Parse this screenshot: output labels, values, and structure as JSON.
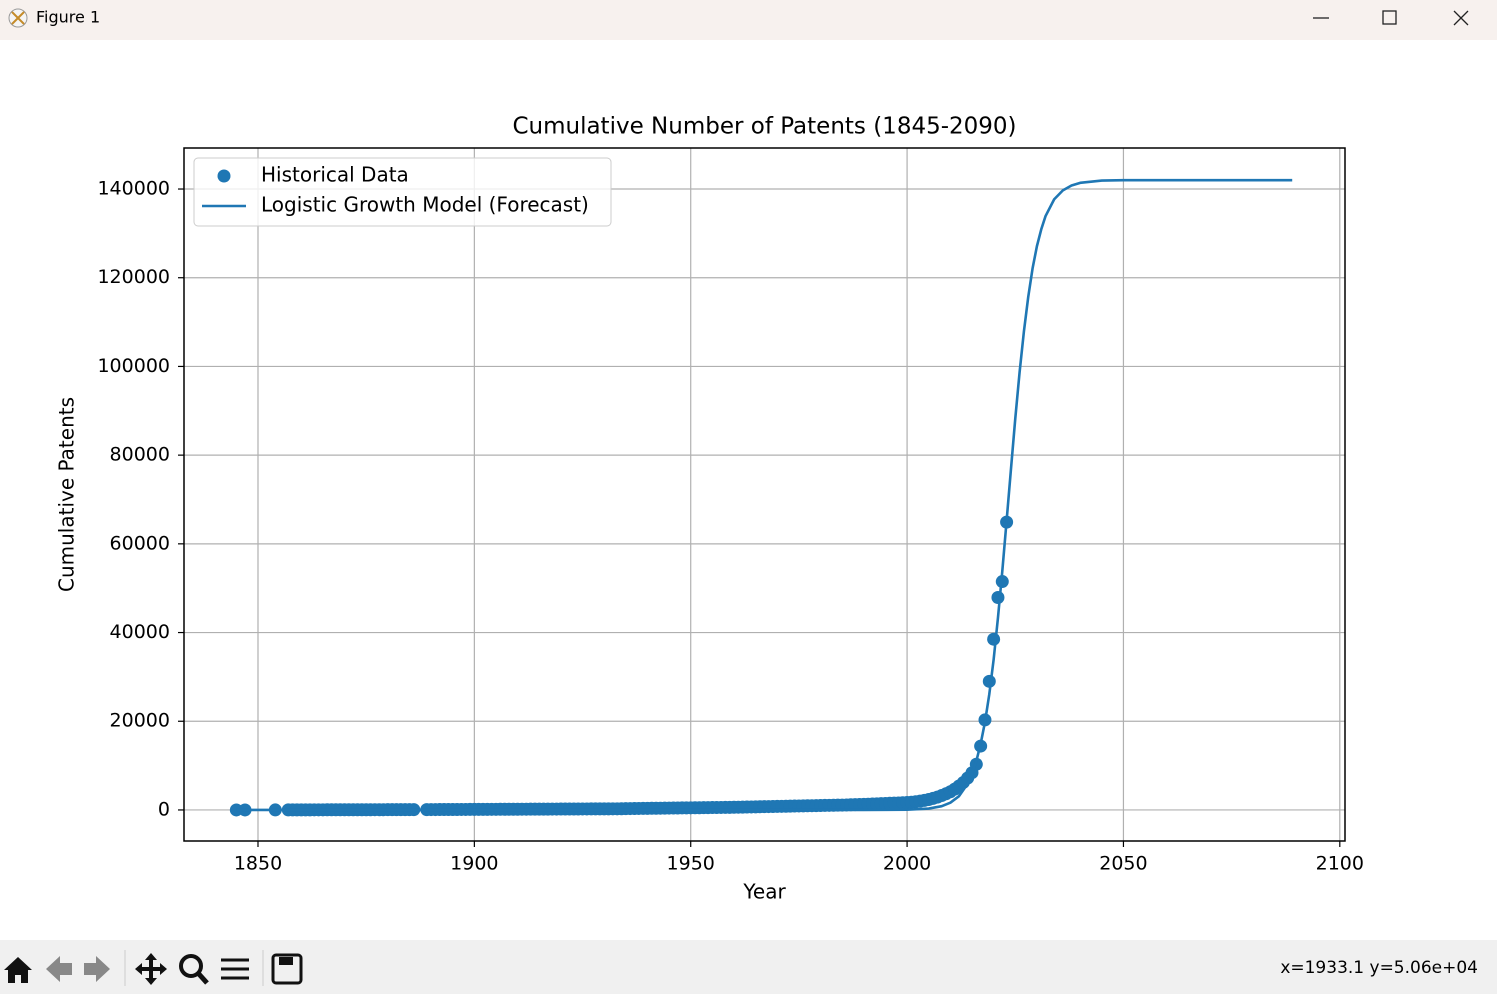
{
  "window": {
    "title": "Figure 1",
    "status": "x=1933.1 y=5.06e+04"
  },
  "chart_data": {
    "type": "line",
    "title": "Cumulative Number of Patents (1845-2090)",
    "x_label": "Year",
    "y_label": "Cumulative Patents",
    "xlim": [
      1832.9,
      2101.2
    ],
    "ylim": [
      -7000,
      149250
    ],
    "xticks": [
      1850,
      1900,
      1950,
      2000,
      2050,
      2100
    ],
    "yticks": [
      0,
      20000,
      40000,
      60000,
      80000,
      100000,
      120000,
      140000
    ],
    "grid": true,
    "legend": "upper left",
    "series": [
      {
        "name": "Historical Data",
        "type": "scatter",
        "color": "#1f77b4",
        "x": [
          1845,
          1847,
          1854,
          1857,
          1858,
          1859,
          1860,
          1861,
          1862,
          1863,
          1864,
          1865,
          1866,
          1867,
          1868,
          1869,
          1870,
          1871,
          1872,
          1873,
          1874,
          1875,
          1876,
          1877,
          1878,
          1879,
          1880,
          1881,
          1882,
          1883,
          1884,
          1885,
          1886,
          1889,
          1890,
          1891,
          1892,
          1893,
          1894,
          1895,
          1896,
          1897,
          1898,
          1899,
          1900,
          1901,
          1902,
          1903,
          1904,
          1905,
          1906,
          1907,
          1908,
          1909,
          1910,
          1911,
          1912,
          1913,
          1914,
          1915,
          1916,
          1917,
          1918,
          1919,
          1920,
          1921,
          1922,
          1923,
          1924,
          1925,
          1926,
          1927,
          1928,
          1929,
          1930,
          1931,
          1932,
          1933,
          1934,
          1935,
          1936,
          1937,
          1938,
          1939,
          1940,
          1941,
          1942,
          1943,
          1944,
          1945,
          1946,
          1947,
          1948,
          1949,
          1950,
          1951,
          1952,
          1953,
          1954,
          1955,
          1956,
          1957,
          1958,
          1959,
          1960,
          1961,
          1962,
          1963,
          1964,
          1965,
          1966,
          1967,
          1968,
          1969,
          1970,
          1971,
          1972,
          1973,
          1974,
          1975,
          1976,
          1977,
          1978,
          1979,
          1980,
          1981,
          1982,
          1983,
          1984,
          1985,
          1986,
          1987,
          1988,
          1989,
          1990,
          1991,
          1992,
          1993,
          1994,
          1995,
          1996,
          1997,
          1998,
          1999,
          2000,
          2001,
          2002,
          2003,
          2004,
          2005,
          2006,
          2007,
          2008,
          2009,
          2010,
          2011,
          2012,
          2013,
          2014,
          2015,
          2016,
          2017,
          2018,
          2019,
          2020,
          2021,
          2022,
          2023
        ],
        "values": [
          1,
          3,
          10,
          15,
          17,
          19,
          21,
          23,
          25,
          27,
          29,
          31,
          33,
          35,
          37,
          39,
          41,
          43,
          45,
          47,
          49,
          51,
          53,
          55,
          57,
          59,
          61,
          63,
          65,
          67,
          69,
          71,
          73,
          80,
          84,
          88,
          92,
          96,
          100,
          104,
          108,
          112,
          116,
          120,
          124,
          128,
          132,
          136,
          140,
          144,
          148,
          152,
          156,
          160,
          164,
          168,
          172,
          176,
          180,
          184,
          188,
          192,
          196,
          200,
          204,
          208,
          212,
          216,
          220,
          224,
          228,
          232,
          236,
          240,
          244,
          248,
          252,
          256,
          260,
          300,
          312,
          324,
          336,
          348,
          360,
          372,
          384,
          396,
          408,
          420,
          432,
          444,
          456,
          468,
          480,
          492,
          504,
          516,
          528,
          540,
          552,
          564,
          576,
          588,
          600,
          620,
          640,
          660,
          680,
          700,
          720,
          740,
          760,
          780,
          800,
          820,
          840,
          860,
          880,
          900,
          920,
          940,
          960,
          980,
          1000,
          1020,
          1040,
          1060,
          1080,
          1100,
          1130,
          1160,
          1190,
          1220,
          1250,
          1300,
          1340,
          1380,
          1420,
          1460,
          1500,
          1540,
          1580,
          1620,
          1680,
          1750,
          1850,
          1980,
          2150,
          2350,
          2600,
          2900,
          3250,
          3650,
          4100,
          4700,
          5400,
          6200,
          7200,
          8400,
          10300,
          14400,
          20300,
          29000,
          38500,
          47900,
          51500,
          64900
        ]
      },
      {
        "name": "Logistic Growth Model (Forecast)",
        "type": "line",
        "color": "#1f77b4",
        "x": [
          1845,
          1900,
          1950,
          1980,
          1990,
          2000,
          2005,
          2008,
          2010,
          2012,
          2014,
          2015,
          2016,
          2017,
          2018,
          2019,
          2020,
          2021,
          2022,
          2023,
          2024,
          2025,
          2026,
          2027,
          2028,
          2029,
          2030,
          2031,
          2032,
          2034,
          2036,
          2038,
          2040,
          2045,
          2050,
          2060,
          2070,
          2080,
          2089
        ],
        "values": [
          0,
          0,
          0,
          0,
          2,
          61,
          318,
          844,
          1630,
          3110,
          5900,
          8090,
          11000,
          14900,
          19800,
          26100,
          33900,
          43300,
          53800,
          65200,
          76800,
          88200,
          98700,
          107900,
          115700,
          122100,
          127100,
          130900,
          133900,
          137700,
          139700,
          140800,
          141400,
          141900,
          142000,
          142000,
          142000,
          142000,
          142000
        ]
      }
    ]
  }
}
